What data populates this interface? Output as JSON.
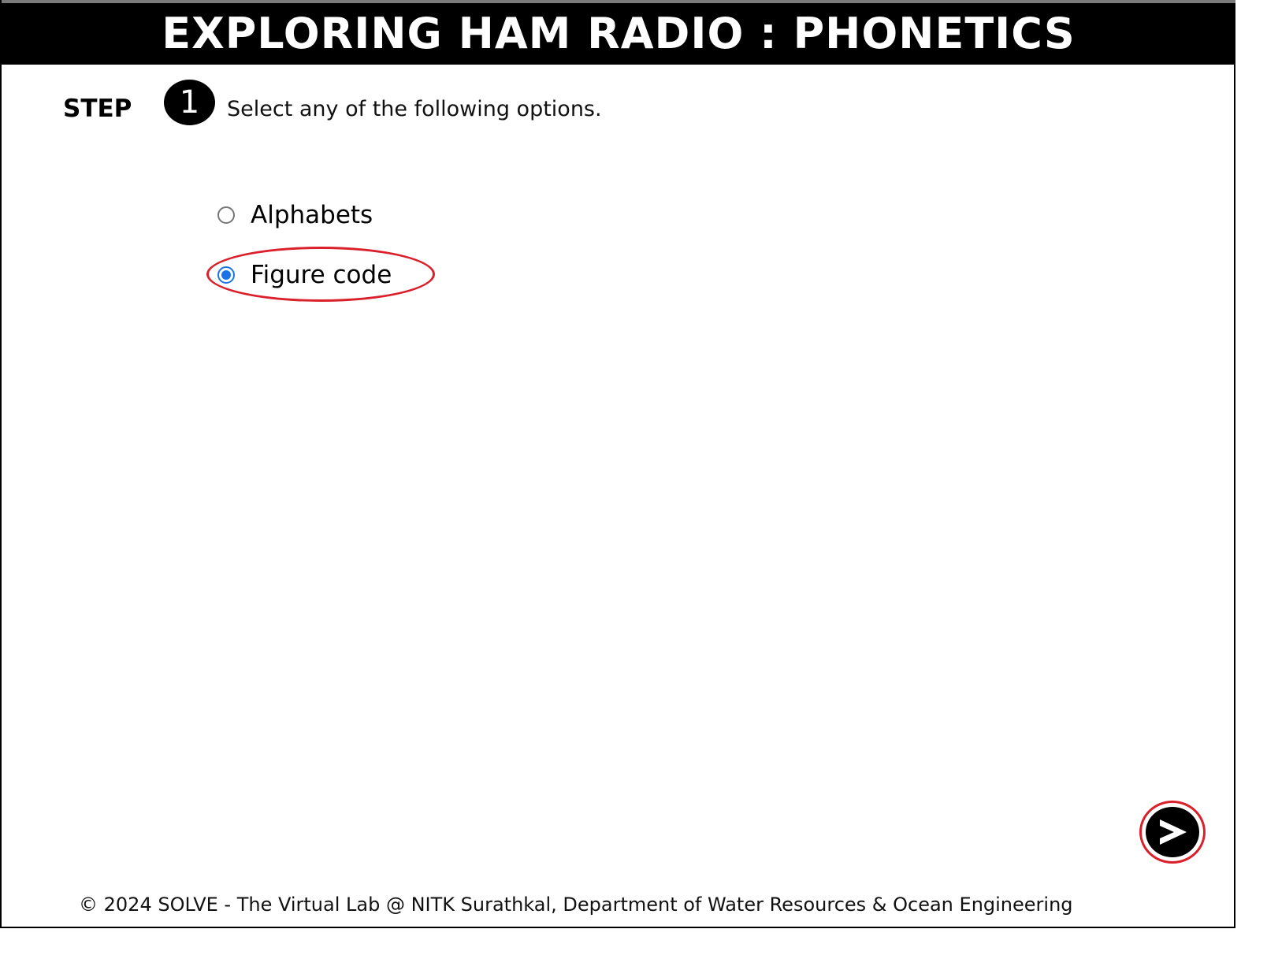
{
  "header": {
    "title": "EXPLORING HAM RADIO : PHONETICS"
  },
  "step": {
    "label": "STEP",
    "number": "1",
    "instruction": "Select any of the following options."
  },
  "options": [
    {
      "label": "Alphabets",
      "selected": false
    },
    {
      "label": "Figure code",
      "selected": true
    }
  ],
  "next_button": {
    "icon": "chevron-right-icon"
  },
  "footer": {
    "text": "© 2024 SOLVE - The Virtual Lab @ NITK Surathkal, Department of Water Resources & Ocean Engineering"
  },
  "colors": {
    "header_bg": "#000000",
    "highlight": "#d9202b",
    "radio_selected": "#1a73e8"
  }
}
